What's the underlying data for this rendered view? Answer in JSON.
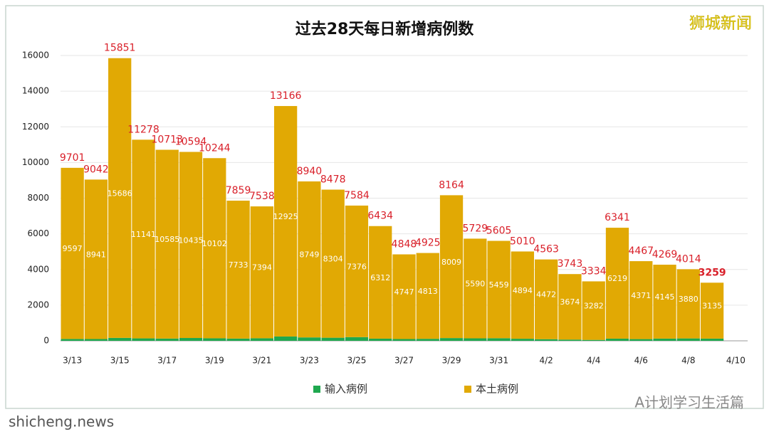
{
  "chart_data": {
    "type": "bar",
    "stacked": true,
    "title": "过去28天每日新增病例数",
    "watermark": "狮城新闻",
    "source": "shicheng.news",
    "credit": "A计划学习生活篇",
    "categories": [
      "3/13",
      null,
      "3/15",
      null,
      "3/17",
      null,
      "3/19",
      null,
      "3/21",
      null,
      "3/23",
      null,
      "3/25",
      null,
      "3/27",
      null,
      "3/29",
      null,
      "3/31",
      null,
      "4/2",
      null,
      "4/4",
      null,
      "4/6",
      null,
      "4/8",
      null,
      "4/10"
    ],
    "series": [
      {
        "name": "输入病例",
        "color": "#1fa84f",
        "values": [
          104,
          101,
          165,
          137,
          128,
          159,
          142,
          126,
          144,
          241,
          191,
          174,
          208,
          122,
          101,
          112,
          155,
          139,
          146,
          116,
          91,
          69,
          52,
          122,
          96,
          124,
          134,
          124,
          null
        ]
      },
      {
        "name": "本土病例",
        "color": "#e1a904",
        "values": [
          9597,
          8941,
          15686,
          11141,
          10585,
          10435,
          10102,
          7733,
          7394,
          12925,
          8749,
          8304,
          7376,
          6312,
          4747,
          4813,
          8009,
          5590,
          5459,
          4894,
          4472,
          3674,
          3282,
          6219,
          4371,
          4145,
          3880,
          3135,
          null
        ]
      }
    ],
    "totals": [
      9701,
      9042,
      15851,
      11278,
      10713,
      10594,
      10244,
      7859,
      7538,
      13166,
      8940,
      8478,
      7584,
      6434,
      4848,
      4925,
      8164,
      5729,
      5605,
      5010,
      4563,
      3743,
      3334,
      6341,
      4467,
      4269,
      4014,
      3259,
      null
    ],
    "ylim": [
      0,
      16000
    ],
    "yticks": [
      0,
      2000,
      4000,
      6000,
      8000,
      10000,
      12000,
      14000,
      16000
    ],
    "grid": true
  }
}
